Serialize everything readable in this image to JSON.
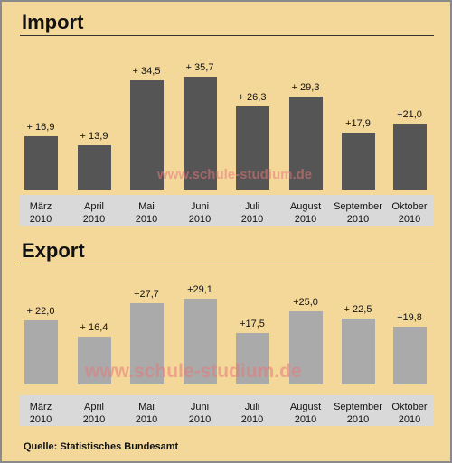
{
  "chart_data": [
    {
      "type": "bar",
      "title": "Import",
      "categories": [
        [
          "März",
          "2010"
        ],
        [
          "April",
          "2010"
        ],
        [
          "Mai",
          "2010"
        ],
        [
          "Juni",
          "2010"
        ],
        [
          "Juli",
          "2010"
        ],
        [
          "August",
          "2010"
        ],
        [
          "September",
          "2010"
        ],
        [
          "Oktober",
          "2010"
        ]
      ],
      "values": [
        16.9,
        13.9,
        34.5,
        35.7,
        26.3,
        29.3,
        17.9,
        21.0
      ],
      "value_labels": [
        "+ 16,9",
        "+ 13,9",
        "+ 34,5",
        "+ 35,7",
        "+ 26,3",
        "+ 29,3",
        "+17,9",
        "+21,0"
      ],
      "bar_color": "#555555",
      "grid": false
    },
    {
      "type": "bar",
      "title": "Export",
      "categories": [
        [
          "März",
          "2010"
        ],
        [
          "April",
          "2010"
        ],
        [
          "Mai",
          "2010"
        ],
        [
          "Juni",
          "2010"
        ],
        [
          "Juli",
          "2010"
        ],
        [
          "August",
          "2010"
        ],
        [
          "September",
          "2010"
        ],
        [
          "Oktober",
          "2010"
        ]
      ],
      "values": [
        22.0,
        16.4,
        27.7,
        29.1,
        17.5,
        25.0,
        22.5,
        19.8
      ],
      "value_labels": [
        "+ 22,0",
        "+ 16,4",
        "+27,7",
        "+29,1",
        "+17,5",
        "+25,0",
        "+ 22,5",
        "+19,8"
      ],
      "bar_color": "#aaaaaa",
      "grid": false
    }
  ],
  "watermark": "www.schule-studium.de",
  "source": "Quelle: Statistisches Bundesamt",
  "colors": {
    "background": "#f3d89a",
    "axis_band": "#d9d9d9"
  }
}
